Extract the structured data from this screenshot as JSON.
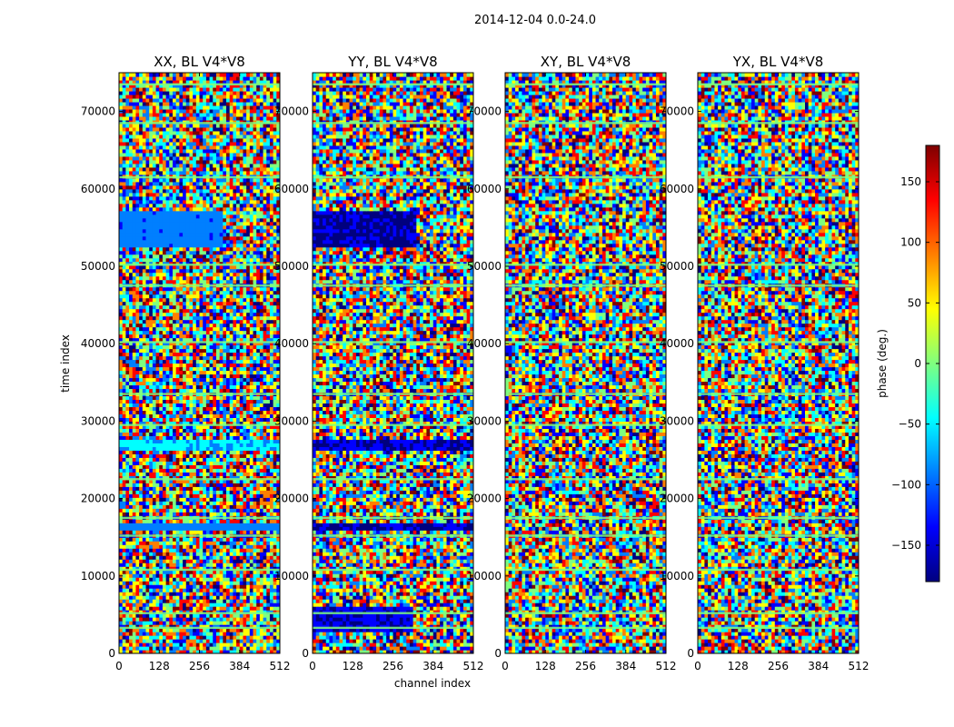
{
  "figure": {
    "suptitle": "2014-12-04 0.0-24.0",
    "xlabel": "channel index",
    "ylabel": "time index",
    "colorbar_label": "phase (deg.)",
    "colorbar_ticks": [
      150,
      100,
      50,
      0,
      -50,
      -100,
      -150
    ],
    "colorbar_tick_labels": [
      "150",
      "100",
      "50",
      "0",
      "−50",
      "−100",
      "−150"
    ],
    "colorbar_range": [
      -180,
      180
    ],
    "colormap": [
      "#00007f",
      "#0000ff",
      "#007fff",
      "#00ffff",
      "#7fff7f",
      "#ffff00",
      "#ff7f00",
      "#ff0000",
      "#7f0000"
    ]
  },
  "chart_data": [
    {
      "type": "heatmap",
      "title": "XX, BL V4*V8",
      "xlabel": "channel index",
      "ylabel": "time index",
      "xlim": [
        0,
        512
      ],
      "ylim": [
        0,
        75000
      ],
      "xticks": [
        0,
        128,
        256,
        384,
        512
      ],
      "yticks": [
        0,
        10000,
        20000,
        30000,
        40000,
        50000,
        60000,
        70000
      ],
      "value_range": [
        -180,
        180
      ],
      "coherent_bands": [
        {
          "t_start": 52500,
          "t_end": 57000,
          "ch_end": 330,
          "phase": -95
        },
        {
          "t_start": 26200,
          "t_end": 27200,
          "ch_end": 512,
          "phase": -60
        },
        {
          "t_start": 15800,
          "t_end": 16600,
          "ch_end": 512,
          "phase": -90
        }
      ]
    },
    {
      "type": "heatmap",
      "title": "YY, BL V4*V8",
      "xlabel": "channel index",
      "ylabel": "time index",
      "xlim": [
        0,
        512
      ],
      "ylim": [
        0,
        75000
      ],
      "xticks": [
        0,
        128,
        256,
        384,
        512
      ],
      "yticks": [
        0,
        10000,
        20000,
        30000,
        40000,
        50000,
        60000,
        70000
      ],
      "value_range": [
        -180,
        180
      ],
      "coherent_bands": [
        {
          "t_start": 52500,
          "t_end": 57000,
          "ch_end": 330,
          "phase": -160
        },
        {
          "t_start": 26200,
          "t_end": 27200,
          "ch_end": 512,
          "phase": -155
        },
        {
          "t_start": 15800,
          "t_end": 16600,
          "ch_end": 512,
          "phase": -160
        },
        {
          "t_start": 2500,
          "t_end": 6000,
          "ch_end": 320,
          "phase": -150
        }
      ]
    },
    {
      "type": "heatmap",
      "title": "XY, BL V4*V8",
      "xlabel": "channel index",
      "ylabel": "time index",
      "xlim": [
        0,
        512
      ],
      "ylim": [
        0,
        75000
      ],
      "xticks": [
        0,
        128,
        256,
        384,
        512
      ],
      "yticks": [
        0,
        10000,
        20000,
        30000,
        40000,
        50000,
        60000,
        70000
      ],
      "value_range": [
        -180,
        180
      ],
      "coherent_bands": []
    },
    {
      "type": "heatmap",
      "title": "YX, BL V4*V8",
      "xlabel": "channel index",
      "ylabel": "time index",
      "xlim": [
        0,
        512
      ],
      "ylim": [
        0,
        75000
      ],
      "xticks": [
        0,
        128,
        256,
        384,
        512
      ],
      "yticks": [
        0,
        10000,
        20000,
        30000,
        40000,
        50000,
        60000,
        70000
      ],
      "value_range": [
        -180,
        180
      ],
      "coherent_bands": []
    }
  ]
}
